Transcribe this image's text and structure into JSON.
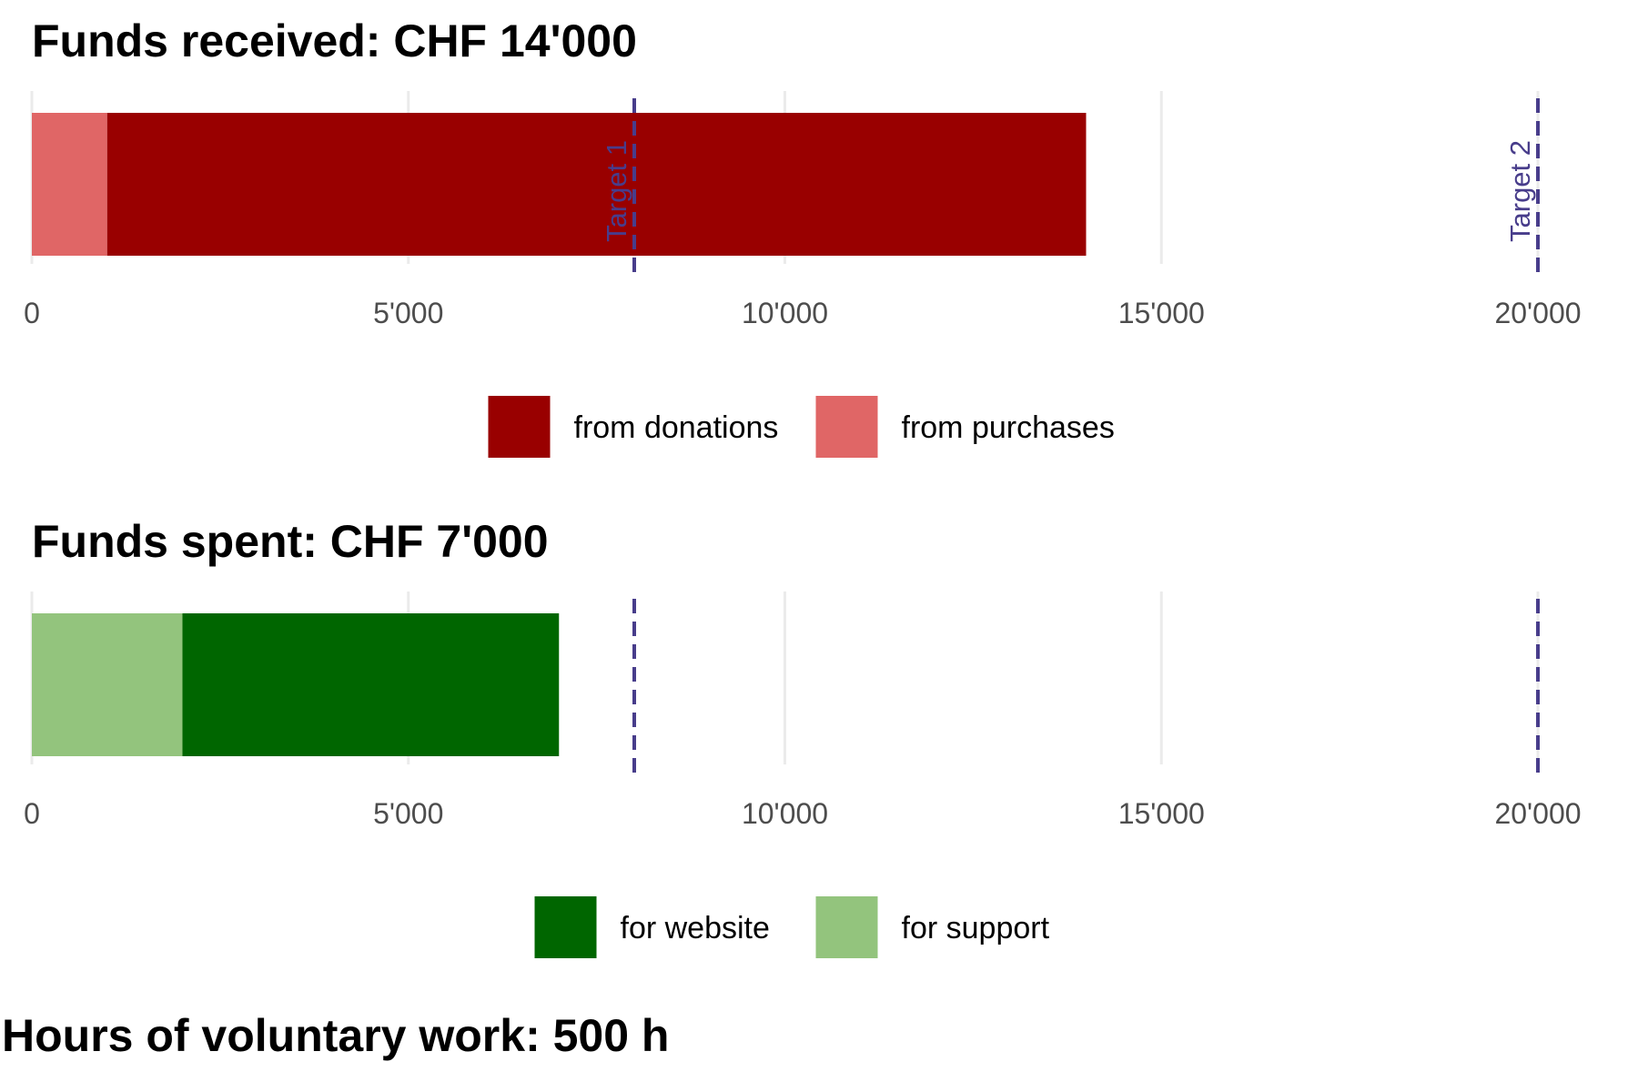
{
  "chart_data": [
    {
      "type": "bar",
      "orientation": "horizontal",
      "stacked": true,
      "title": "Funds received: CHF 14'000",
      "xlim": [
        0,
        20000
      ],
      "x_ticks": [
        0,
        5000,
        10000,
        15000,
        20000
      ],
      "x_tick_labels": [
        "0",
        "5'000",
        "10'000",
        "15'000",
        "20'000"
      ],
      "grid": "vertical",
      "series": [
        {
          "name": "from purchases",
          "value": 1000,
          "color": "#E06666"
        },
        {
          "name": "from donations",
          "value": 13000,
          "color": "#990000"
        }
      ],
      "legend": {
        "position": "bottom",
        "items": [
          {
            "label": "from donations",
            "color": "#990000"
          },
          {
            "label": "from purchases",
            "color": "#E06666"
          }
        ]
      },
      "reference_lines": [
        {
          "x": 8000,
          "label": "Target 1",
          "style": "dashed",
          "color": "#483D8B"
        },
        {
          "x": 20000,
          "label": "Target 2",
          "style": "dashed",
          "color": "#483D8B"
        }
      ]
    },
    {
      "type": "bar",
      "orientation": "horizontal",
      "stacked": true,
      "title": "Funds spent: CHF 7'000",
      "xlim": [
        0,
        20000
      ],
      "x_ticks": [
        0,
        5000,
        10000,
        15000,
        20000
      ],
      "x_tick_labels": [
        "0",
        "5'000",
        "10'000",
        "15'000",
        "20'000"
      ],
      "grid": "vertical",
      "series": [
        {
          "name": "for support",
          "value": 2000,
          "color": "#93C47D"
        },
        {
          "name": "for website",
          "value": 5000,
          "color": "#006600"
        }
      ],
      "legend": {
        "position": "bottom",
        "items": [
          {
            "label": "for website",
            "color": "#006600"
          },
          {
            "label": "for support",
            "color": "#93C47D"
          }
        ]
      },
      "reference_lines": [
        {
          "x": 8000,
          "label": "",
          "style": "dashed",
          "color": "#483D8B"
        },
        {
          "x": 20000,
          "label": "",
          "style": "dashed",
          "color": "#483D8B"
        }
      ]
    }
  ],
  "footer": {
    "title": "Hours of voluntary work: 500 h"
  }
}
